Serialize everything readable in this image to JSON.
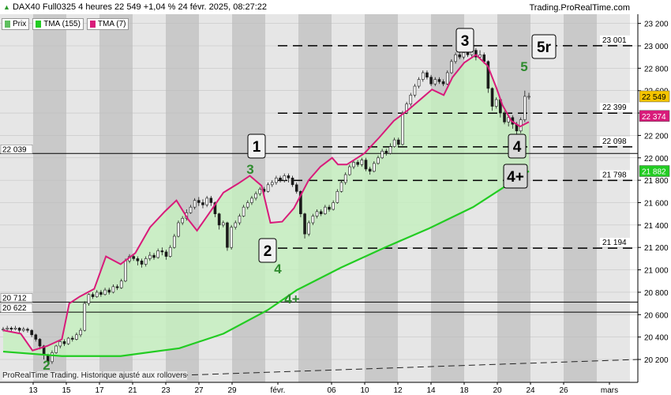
{
  "header": {
    "instrument": "DAX40 Full0325",
    "timeframe": "4 heures",
    "last": "22 549",
    "change": "+1,04 %",
    "datetime": "24 févr. 2025, 08:27:22",
    "source": "Trading.ProRealTime.com"
  },
  "legend": [
    {
      "label": "Prix",
      "color": "#5fbf5f"
    },
    {
      "label": "TMA (155)",
      "color": "#22cc22"
    },
    {
      "label": "TMA (7)",
      "color": "#d81b7a"
    }
  ],
  "footer": "ProRealTime Trading. Historique ajusté aux rollovers",
  "chart_data": {
    "type": "candlestick",
    "ylim": [
      20000,
      23250
    ],
    "y_ticks": [
      20200,
      20400,
      20600,
      20800,
      21000,
      21200,
      21400,
      21600,
      21800,
      22000,
      22200,
      22400,
      22600,
      22800,
      23000,
      23200
    ],
    "x_ticks": [
      "13",
      "15",
      "17",
      "21",
      "23",
      "27",
      "29",
      "févr.",
      "06",
      "10",
      "12",
      "14",
      "18",
      "20",
      "24",
      "26",
      "mars"
    ],
    "current_price": {
      "label": "22 549",
      "value": 22549,
      "color": "#f5c400"
    },
    "tma7_last": {
      "label": "22 374",
      "value": 22374,
      "color": "#d81b7a"
    },
    "tma155_last": {
      "label": "21 882",
      "value": 21882,
      "color": "#22cc22"
    },
    "levels_dashed": [
      {
        "value": 23001,
        "label": "23 001"
      },
      {
        "value": 22399,
        "label": "22 399"
      },
      {
        "value": 22098,
        "label": "22 098"
      },
      {
        "value": 21798,
        "label": "21 798"
      },
      {
        "value": 21194,
        "label": "21 194"
      }
    ],
    "levels_solid": [
      {
        "value": 22039,
        "label": "22 039"
      },
      {
        "value": 20712,
        "label": "20 712"
      },
      {
        "value": 20622,
        "label": "20 622"
      }
    ],
    "wave_labels": [
      {
        "text": "1",
        "style": "boxed"
      },
      {
        "text": "2",
        "style": "boxed"
      },
      {
        "text": "3",
        "style": "boxed"
      },
      {
        "text": "4",
        "style": "boxed"
      },
      {
        "text": "4+",
        "style": "boxed"
      },
      {
        "text": "5r",
        "style": "boxed"
      },
      {
        "text": "2",
        "style": "green"
      },
      {
        "text": "3",
        "style": "green"
      },
      {
        "text": "4",
        "style": "green"
      },
      {
        "text": "4+",
        "style": "green"
      },
      {
        "text": "5",
        "style": "green"
      }
    ],
    "series": [
      {
        "name": "TMA (7)",
        "color": "#d81b7a",
        "points": [
          [
            0,
            20460
          ],
          [
            12,
            20430
          ],
          [
            20,
            20280
          ],
          [
            30,
            20320
          ],
          [
            40,
            20380
          ],
          [
            45,
            20700
          ],
          [
            52,
            20760
          ],
          [
            62,
            20830
          ],
          [
            70,
            21120
          ],
          [
            80,
            21050
          ],
          [
            90,
            21150
          ],
          [
            100,
            21380
          ],
          [
            110,
            21520
          ],
          [
            118,
            21620
          ],
          [
            126,
            21450
          ],
          [
            132,
            21350
          ],
          [
            140,
            21500
          ],
          [
            150,
            21690
          ],
          [
            160,
            21770
          ],
          [
            168,
            21840
          ],
          [
            176,
            21750
          ],
          [
            182,
            21420
          ],
          [
            190,
            21430
          ],
          [
            198,
            21550
          ],
          [
            208,
            21800
          ],
          [
            216,
            21920
          ],
          [
            224,
            22000
          ],
          [
            228,
            21940
          ],
          [
            234,
            21940
          ],
          [
            246,
            22040
          ],
          [
            256,
            22180
          ],
          [
            266,
            22330
          ],
          [
            276,
            22430
          ],
          [
            284,
            22520
          ],
          [
            292,
            22610
          ],
          [
            300,
            22560
          ],
          [
            306,
            22720
          ],
          [
            314,
            22850
          ],
          [
            322,
            22920
          ],
          [
            330,
            22820
          ],
          [
            336,
            22620
          ],
          [
            340,
            22470
          ],
          [
            346,
            22330
          ],
          [
            352,
            22280
          ],
          [
            358,
            22320
          ]
        ]
      },
      {
        "name": "TMA (155)",
        "color": "#22cc22",
        "points": [
          [
            0,
            20270
          ],
          [
            40,
            20230
          ],
          [
            80,
            20230
          ],
          [
            120,
            20300
          ],
          [
            150,
            20430
          ],
          [
            180,
            20640
          ],
          [
            200,
            20820
          ],
          [
            230,
            21020
          ],
          [
            260,
            21200
          ],
          [
            290,
            21370
          ],
          [
            320,
            21560
          ],
          [
            358,
            21882
          ]
        ]
      }
    ],
    "candles": [
      [
        0,
        20470,
        20470,
        20490,
        20450
      ],
      [
        1,
        20470,
        20480,
        20500,
        20455
      ],
      [
        2,
        20480,
        20470,
        20495,
        20450
      ],
      [
        3,
        20470,
        20480,
        20500,
        20460
      ],
      [
        4,
        20480,
        20460,
        20490,
        20440
      ],
      [
        5,
        20460,
        20470,
        20490,
        20445
      ],
      [
        6,
        20470,
        20460,
        20485,
        20440
      ],
      [
        7,
        20460,
        20420,
        20470,
        20400
      ],
      [
        8,
        20420,
        20380,
        20430,
        20360
      ],
      [
        9,
        20380,
        20320,
        20390,
        20290
      ],
      [
        10,
        20320,
        20240,
        20330,
        20200
      ],
      [
        11,
        20240,
        20180,
        20250,
        20140
      ],
      [
        12,
        20180,
        20260,
        20280,
        20160
      ],
      [
        13,
        20260,
        20320,
        20330,
        20250
      ],
      [
        14,
        20320,
        20360,
        20380,
        20300
      ],
      [
        15,
        20360,
        20340,
        20380,
        20320
      ],
      [
        16,
        20340,
        20390,
        20400,
        20330
      ],
      [
        17,
        20390,
        20380,
        20410,
        20360
      ],
      [
        18,
        20380,
        20420,
        20440,
        20370
      ],
      [
        19,
        20420,
        20460,
        20480,
        20400
      ],
      [
        20,
        20460,
        20700,
        20720,
        20450
      ],
      [
        21,
        20700,
        20780,
        20790,
        20680
      ],
      [
        22,
        20780,
        20760,
        20800,
        20740
      ],
      [
        23,
        20760,
        20800,
        20820,
        20750
      ],
      [
        24,
        20800,
        20780,
        20820,
        20760
      ],
      [
        25,
        20780,
        20820,
        20840,
        20770
      ],
      [
        26,
        20820,
        20800,
        20840,
        20780
      ],
      [
        27,
        20800,
        20850,
        20870,
        20790
      ],
      [
        28,
        20850,
        20840,
        20870,
        20820
      ],
      [
        29,
        20840,
        20900,
        20920,
        20830
      ],
      [
        30,
        20900,
        21080,
        21100,
        20890
      ],
      [
        31,
        21080,
        21120,
        21140,
        21060
      ],
      [
        32,
        21120,
        21100,
        21140,
        21080
      ],
      [
        33,
        21100,
        21080,
        21120,
        21040
      ],
      [
        34,
        21080,
        21050,
        21100,
        21020
      ],
      [
        35,
        21050,
        21100,
        21120,
        21030
      ],
      [
        36,
        21100,
        21130,
        21160,
        21080
      ],
      [
        37,
        21130,
        21110,
        21150,
        21090
      ],
      [
        38,
        21110,
        21170,
        21190,
        21100
      ],
      [
        39,
        21170,
        21160,
        21200,
        21130
      ],
      [
        40,
        21160,
        21120,
        21180,
        21090
      ],
      [
        41,
        21120,
        21200,
        21220,
        21110
      ],
      [
        42,
        21200,
        21300,
        21320,
        21190
      ],
      [
        43,
        21300,
        21420,
        21440,
        21290
      ],
      [
        44,
        21420,
        21460,
        21480,
        21400
      ],
      [
        45,
        21460,
        21510,
        21540,
        21440
      ],
      [
        46,
        21510,
        21560,
        21580,
        21500
      ],
      [
        47,
        21560,
        21620,
        21640,
        21540
      ],
      [
        48,
        21620,
        21600,
        21650,
        21570
      ],
      [
        49,
        21600,
        21580,
        21630,
        21550
      ],
      [
        50,
        21580,
        21640,
        21660,
        21560
      ],
      [
        51,
        21640,
        21600,
        21660,
        21570
      ],
      [
        52,
        21600,
        21500,
        21610,
        21470
      ],
      [
        53,
        21500,
        21400,
        21510,
        21360
      ],
      [
        54,
        21400,
        21420,
        21440,
        21380
      ],
      [
        55,
        21420,
        21200,
        21430,
        21170
      ],
      [
        56,
        21200,
        21380,
        21400,
        21180
      ],
      [
        57,
        21380,
        21420,
        21440,
        21360
      ],
      [
        58,
        21420,
        21480,
        21500,
        21400
      ],
      [
        59,
        21480,
        21560,
        21580,
        21470
      ],
      [
        60,
        21560,
        21600,
        21620,
        21540
      ],
      [
        61,
        21600,
        21640,
        21660,
        21580
      ],
      [
        62,
        21640,
        21680,
        21700,
        21620
      ],
      [
        63,
        21680,
        21720,
        21740,
        21660
      ],
      [
        64,
        21720,
        21700,
        21740,
        21680
      ],
      [
        65,
        21700,
        21760,
        21780,
        21690
      ],
      [
        66,
        21760,
        21780,
        21800,
        21740
      ],
      [
        67,
        21780,
        21820,
        21840,
        21760
      ],
      [
        68,
        21820,
        21800,
        21840,
        21780
      ],
      [
        69,
        21800,
        21840,
        21860,
        21780
      ],
      [
        70,
        21840,
        21820,
        21860,
        21780
      ],
      [
        71,
        21820,
        21760,
        21840,
        21740
      ],
      [
        72,
        21760,
        21700,
        21780,
        21680
      ],
      [
        73,
        21700,
        21500,
        21710,
        21470
      ],
      [
        74,
        21500,
        21320,
        21510,
        21280
      ],
      [
        75,
        21320,
        21420,
        21440,
        21300
      ],
      [
        76,
        21420,
        21480,
        21500,
        21400
      ],
      [
        77,
        21480,
        21520,
        21540,
        21460
      ],
      [
        78,
        21520,
        21500,
        21540,
        21480
      ],
      [
        79,
        21500,
        21560,
        21580,
        21490
      ],
      [
        80,
        21560,
        21540,
        21580,
        21520
      ],
      [
        81,
        21540,
        21600,
        21620,
        21530
      ],
      [
        82,
        21600,
        21700,
        21720,
        21590
      ],
      [
        83,
        21700,
        21780,
        21800,
        21690
      ],
      [
        84,
        21780,
        21850,
        21870,
        21760
      ],
      [
        85,
        21850,
        21920,
        21940,
        21840
      ],
      [
        86,
        21920,
        21960,
        21980,
        21900
      ],
      [
        87,
        21960,
        21940,
        21980,
        21920
      ],
      [
        88,
        21940,
        21980,
        22000,
        21920
      ],
      [
        89,
        21980,
        21900,
        22000,
        21880
      ],
      [
        90,
        21900,
        21880,
        21920,
        21850
      ],
      [
        91,
        21880,
        21950,
        21970,
        21870
      ],
      [
        92,
        21950,
        22000,
        22020,
        21940
      ],
      [
        93,
        22000,
        22060,
        22080,
        21990
      ],
      [
        94,
        22060,
        22040,
        22080,
        22020
      ],
      [
        95,
        22040,
        22100,
        22130,
        22030
      ],
      [
        96,
        22100,
        22160,
        22180,
        22090
      ],
      [
        97,
        22160,
        22120,
        22180,
        22100
      ],
      [
        98,
        22120,
        22400,
        22420,
        22110
      ],
      [
        99,
        22400,
        22480,
        22500,
        22390
      ],
      [
        100,
        22480,
        22560,
        22580,
        22460
      ],
      [
        101,
        22560,
        22640,
        22660,
        22540
      ],
      [
        102,
        22640,
        22700,
        22720,
        22620
      ],
      [
        103,
        22700,
        22760,
        22780,
        22680
      ],
      [
        104,
        22760,
        22720,
        22780,
        22700
      ],
      [
        105,
        22720,
        22660,
        22740,
        22640
      ],
      [
        106,
        22660,
        22700,
        22720,
        22640
      ],
      [
        107,
        22700,
        22680,
        22720,
        22660
      ],
      [
        108,
        22680,
        22660,
        22700,
        22640
      ],
      [
        109,
        22660,
        22760,
        22780,
        22650
      ],
      [
        110,
        22760,
        22860,
        22880,
        22750
      ],
      [
        111,
        22860,
        22920,
        22940,
        22840
      ],
      [
        112,
        22920,
        22900,
        22950,
        22880
      ],
      [
        113,
        22900,
        22940,
        22960,
        22880
      ],
      [
        114,
        22940,
        22920,
        22960,
        22900
      ],
      [
        115,
        22920,
        22960,
        22980,
        22900
      ],
      [
        116,
        22960,
        22900,
        22980,
        22870
      ],
      [
        117,
        22900,
        22920,
        22960,
        22880
      ],
      [
        118,
        22920,
        22860,
        22940,
        22840
      ],
      [
        119,
        22860,
        22620,
        22870,
        22580
      ],
      [
        120,
        22620,
        22460,
        22630,
        22420
      ],
      [
        121,
        22460,
        22520,
        22540,
        22440
      ],
      [
        122,
        22520,
        22400,
        22530,
        22360
      ],
      [
        123,
        22400,
        22320,
        22420,
        22300
      ],
      [
        124,
        22320,
        22360,
        22380,
        22280
      ],
      [
        125,
        22360,
        22300,
        22380,
        22260
      ],
      [
        126,
        22300,
        22240,
        22320,
        22200
      ],
      [
        127,
        22240,
        22340,
        22360,
        22220
      ],
      [
        128,
        22340,
        22549,
        22600,
        22320
      ],
      [
        129,
        22549,
        22549,
        22580,
        22520
      ]
    ]
  }
}
